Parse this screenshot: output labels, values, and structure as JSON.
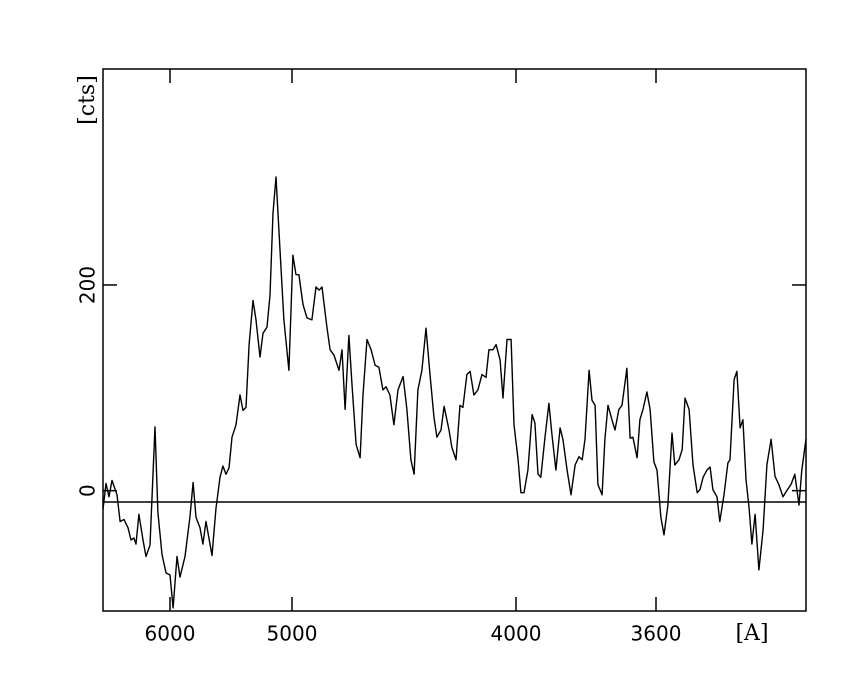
{
  "chart_data": {
    "type": "line",
    "x_label": "[A]",
    "y_label": "[cts]",
    "x": [
      6550,
      6525,
      6501,
      6476,
      6435,
      6410,
      6378,
      6345,
      6320,
      6296,
      6279,
      6255,
      6222,
      6197,
      6164,
      6123,
      6099,
      6066,
      6033,
      6000,
      5975,
      5943,
      5918,
      5877,
      5836,
      5811,
      5787,
      5754,
      5730,
      5705,
      5656,
      5623,
      5590,
      5566,
      5541,
      5516,
      5492,
      5459,
      5426,
      5402,
      5377,
      5352,
      5320,
      5295,
      5262,
      5238,
      5205,
      5180,
      5156,
      5131,
      5098,
      5066,
      5025,
      4996,
      4982,
      4969,
      4951,
      4933,
      4911,
      4893,
      4879,
      4866,
      4844,
      4830,
      4813,
      4790,
      4777,
      4763,
      4746,
      4732,
      4714,
      4696,
      4683,
      4665,
      4647,
      4629,
      4612,
      4594,
      4580,
      4563,
      4545,
      4527,
      4504,
      4487,
      4469,
      4455,
      4438,
      4420,
      4402,
      4384,
      4366,
      4353,
      4335,
      4321,
      4299,
      4286,
      4268,
      4250,
      4237,
      4219,
      4205,
      4188,
      4170,
      4152,
      4134,
      4121,
      4103,
      4089,
      4071,
      4058,
      4040,
      4022,
      4009,
      3994,
      3986,
      3977,
      3966,
      3954,
      3946,
      3937,
      3929,
      3917,
      3906,
      3897,
      3886,
      3874,
      3866,
      3854,
      3843,
      3831,
      3820,
      3811,
      3803,
      3791,
      3783,
      3774,
      3766,
      3754,
      3746,
      3737,
      3726,
      3717,
      3706,
      3697,
      3683,
      3674,
      3666,
      3654,
      3646,
      3637,
      3626,
      3617,
      3606,
      3597,
      3586,
      3577,
      3566,
      3554,
      3546,
      3534,
      3525,
      3517,
      3505,
      3494,
      3482,
      3474,
      3465,
      3454,
      3445,
      3437,
      3425,
      3417,
      3405,
      3394,
      3388,
      3376,
      3368,
      3359,
      3351,
      3342,
      3333,
      3325,
      3316,
      3305,
      3293,
      3282,
      3270,
      3259,
      3248,
      3236,
      3227,
      3213,
      3202,
      3190,
      3182,
      3170
    ],
    "values": [
      -18,
      7,
      -6,
      10,
      -4,
      -30,
      -28,
      -36,
      -48,
      -46,
      -52,
      -23,
      -48,
      -64,
      -53,
      62,
      -21,
      -62,
      -80,
      -82,
      -114,
      -64,
      -84,
      -64,
      -25,
      8,
      -26,
      -36,
      -52,
      -30,
      -63,
      -17,
      13,
      24,
      16,
      22,
      52,
      64,
      93,
      78,
      81,
      142,
      185,
      166,
      130,
      153,
      159,
      190,
      270,
      305,
      234,
      166,
      117,
      229,
      210,
      210,
      181,
      168,
      166,
      198,
      195,
      198,
      159,
      137,
      132,
      117,
      137,
      79,
      151,
      103,
      45,
      32,
      93,
      147,
      137,
      122,
      120,
      98,
      101,
      93,
      64,
      98,
      111,
      79,
      30,
      16,
      98,
      117,
      158,
      113,
      71,
      52,
      59,
      82,
      59,
      42,
      30,
      83,
      81,
      113,
      116,
      93,
      98,
      113,
      110,
      137,
      137,
      142,
      127,
      90,
      147,
      147,
      64,
      30,
      -2,
      -2,
      20,
      74,
      66,
      16,
      13,
      52,
      85,
      54,
      20,
      61,
      50,
      20,
      -4,
      25,
      33,
      30,
      50,
      117,
      88,
      83,
      6,
      -4,
      50,
      83,
      69,
      59,
      79,
      83,
      119,
      51,
      52,
      32,
      69,
      79,
      96,
      79,
      28,
      20,
      -26,
      -43,
      -14,
      56,
      25,
      30,
      40,
      90,
      79,
      25,
      -2,
      1,
      13,
      20,
      23,
      1,
      -6,
      -30,
      -4,
      27,
      30,
      108,
      116,
      61,
      69,
      11,
      -17,
      -52,
      -23,
      -77,
      -38,
      25,
      50,
      14,
      6,
      -6,
      -1,
      6,
      16,
      -14,
      20,
      50
    ],
    "color": "#000000",
    "hline": -11,
    "xlim": [
      6550,
      3170
    ],
    "xticks": [
      6000,
      5000,
      4000,
      3600
    ],
    "ylim": [
      -117,
      410
    ],
    "yticks": [
      0,
      200
    ]
  }
}
